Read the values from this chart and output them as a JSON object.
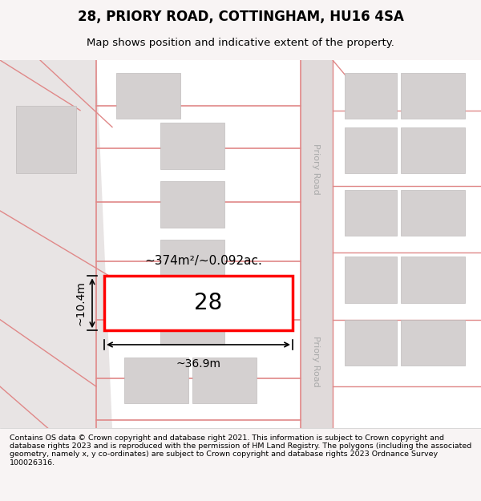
{
  "title": "28, PRIORY ROAD, COTTINGHAM, HU16 4SA",
  "subtitle": "Map shows position and indicative extent of the property.",
  "footer": "Contains OS data © Crown copyright and database right 2021. This information is subject to Crown copyright and database rights 2023 and is reproduced with the permission of HM Land Registry. The polygons (including the associated geometry, namely x, y co-ordinates) are subject to Crown copyright and database rights 2023 Ordnance Survey 100026316.",
  "bg_color": "#f5f0f0",
  "map_bg": "#ffffff",
  "road_color": "#e8e0e0",
  "plot_outline_color": "#d0c8c8",
  "highlight_color": "#ff0000",
  "highlight_fill": "#ffffff",
  "building_color": "#d8d8d8",
  "road_line_color": "#e8a0a0",
  "area_text": "~374m²/~0.092ac.",
  "number_text": "28",
  "width_text": "~36.9m",
  "height_text": "~10.4m",
  "priory_road_color": "#cccccc"
}
